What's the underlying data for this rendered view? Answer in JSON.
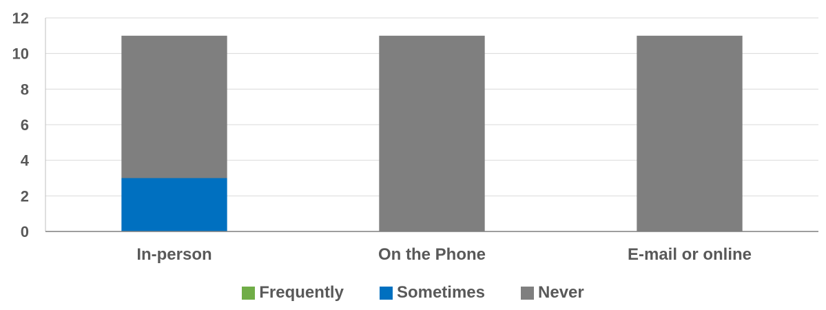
{
  "chart_data": {
    "type": "bar",
    "stacked": true,
    "categories": [
      "In-person",
      "On the Phone",
      "E-mail or online"
    ],
    "series": [
      {
        "name": "Frequently",
        "values": [
          0,
          0,
          0
        ],
        "color": "#70AD47"
      },
      {
        "name": "Sometimes",
        "values": [
          3,
          0,
          0
        ],
        "color": "#0070C0"
      },
      {
        "name": "Never",
        "values": [
          8,
          11,
          11
        ],
        "color": "#7F7F7F"
      }
    ],
    "yticks": [
      "0",
      "2",
      "4",
      "6",
      "8",
      "10",
      "12"
    ],
    "ylim": [
      0,
      12
    ],
    "grid": true,
    "legend_position": "bottom"
  }
}
